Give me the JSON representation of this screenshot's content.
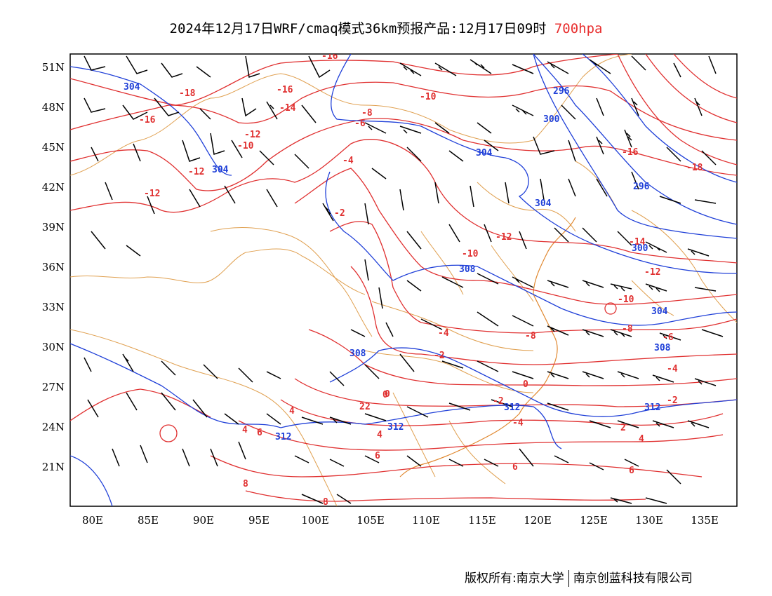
{
  "title": {
    "main": "2024年12月17日WRF/cmaq模式36km预报产品:12月17日09时",
    "level": "700hpa",
    "level_color": "#e83030"
  },
  "axes": {
    "lat_ticks": [
      "51N",
      "48N",
      "45N",
      "42N",
      "39N",
      "36N",
      "33N",
      "30N",
      "27N",
      "24N",
      "21N"
    ],
    "lon_ticks": [
      "80E",
      "85E",
      "90E",
      "95E",
      "100E",
      "105E",
      "110E",
      "115E",
      "120E",
      "125E",
      "130E",
      "135E"
    ]
  },
  "layers": {
    "temperature_color": "#e03030",
    "height_color": "#2040d8",
    "border_color": "#e0a050",
    "wind_barb_color": "#000000"
  },
  "temperature_labels": [
    "-16",
    "-18",
    "-16",
    "-14",
    "-16",
    "-12",
    "-10",
    "-12",
    "-12",
    "-10",
    "-8",
    "-6",
    "-4",
    "-2",
    "-12",
    "-10",
    "-16",
    "-18",
    "-14",
    "-12",
    "-10",
    "-8",
    "-8",
    "-6",
    "-4",
    "-2",
    "0",
    "-2",
    "-4",
    "2",
    "4",
    "4",
    "6",
    "6",
    "8",
    "6",
    "8",
    "2",
    "4",
    "-2",
    "-4",
    "0",
    "0",
    "2",
    "4",
    "6"
  ],
  "height_labels": [
    "304",
    "296",
    "300",
    "304",
    "296",
    "304",
    "304",
    "300",
    "308",
    "308",
    "304",
    "308",
    "312",
    "312",
    "312",
    "312"
  ],
  "copyright": {
    "left": "版权所有:南京大学",
    "right": "南京创蓝科技有限公司"
  }
}
